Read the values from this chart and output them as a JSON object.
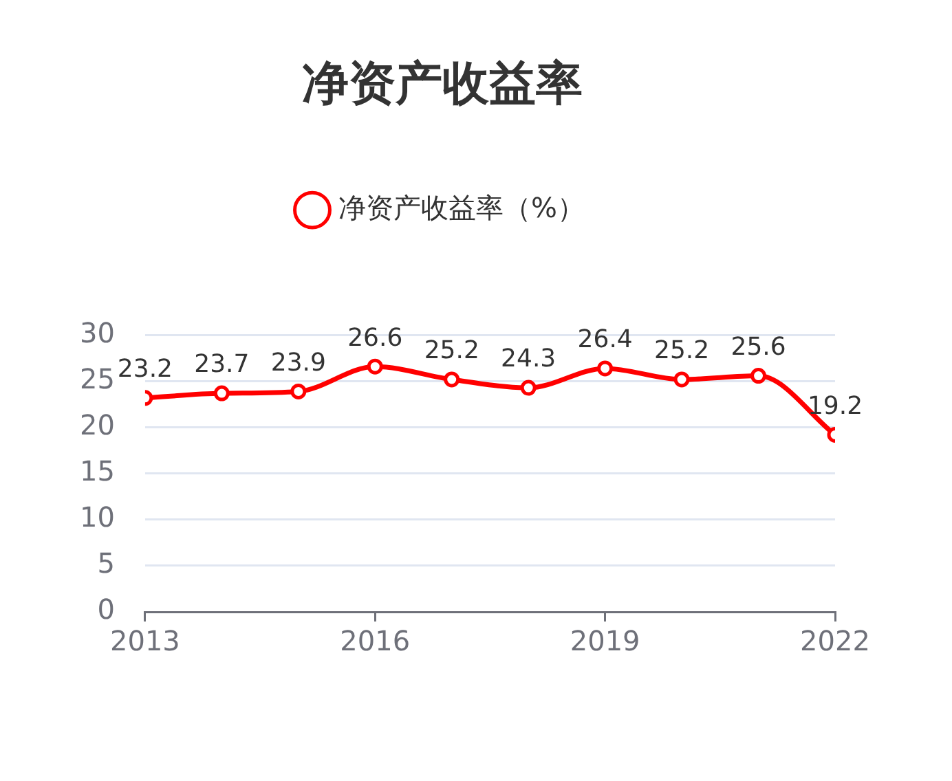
{
  "chart_data": {
    "type": "line",
    "title": "净资产收益率",
    "x": [
      2013,
      2014,
      2015,
      2016,
      2017,
      2018,
      2019,
      2020,
      2021,
      2022
    ],
    "series": [
      {
        "name": "净资产收益率（%）",
        "color": "#ff0000",
        "values": [
          23.2,
          23.7,
          23.9,
          26.6,
          25.2,
          24.3,
          26.4,
          25.2,
          25.6,
          19.2
        ]
      }
    ],
    "xlim": [
      2013,
      2022
    ],
    "xticks": [
      2013,
      2016,
      2019,
      2022
    ],
    "ylim": [
      0,
      30
    ],
    "yticks": [
      0,
      5,
      10,
      15,
      20,
      25,
      30
    ],
    "grid": "y",
    "legend": "top",
    "marker": "circle",
    "data_labels": true
  }
}
